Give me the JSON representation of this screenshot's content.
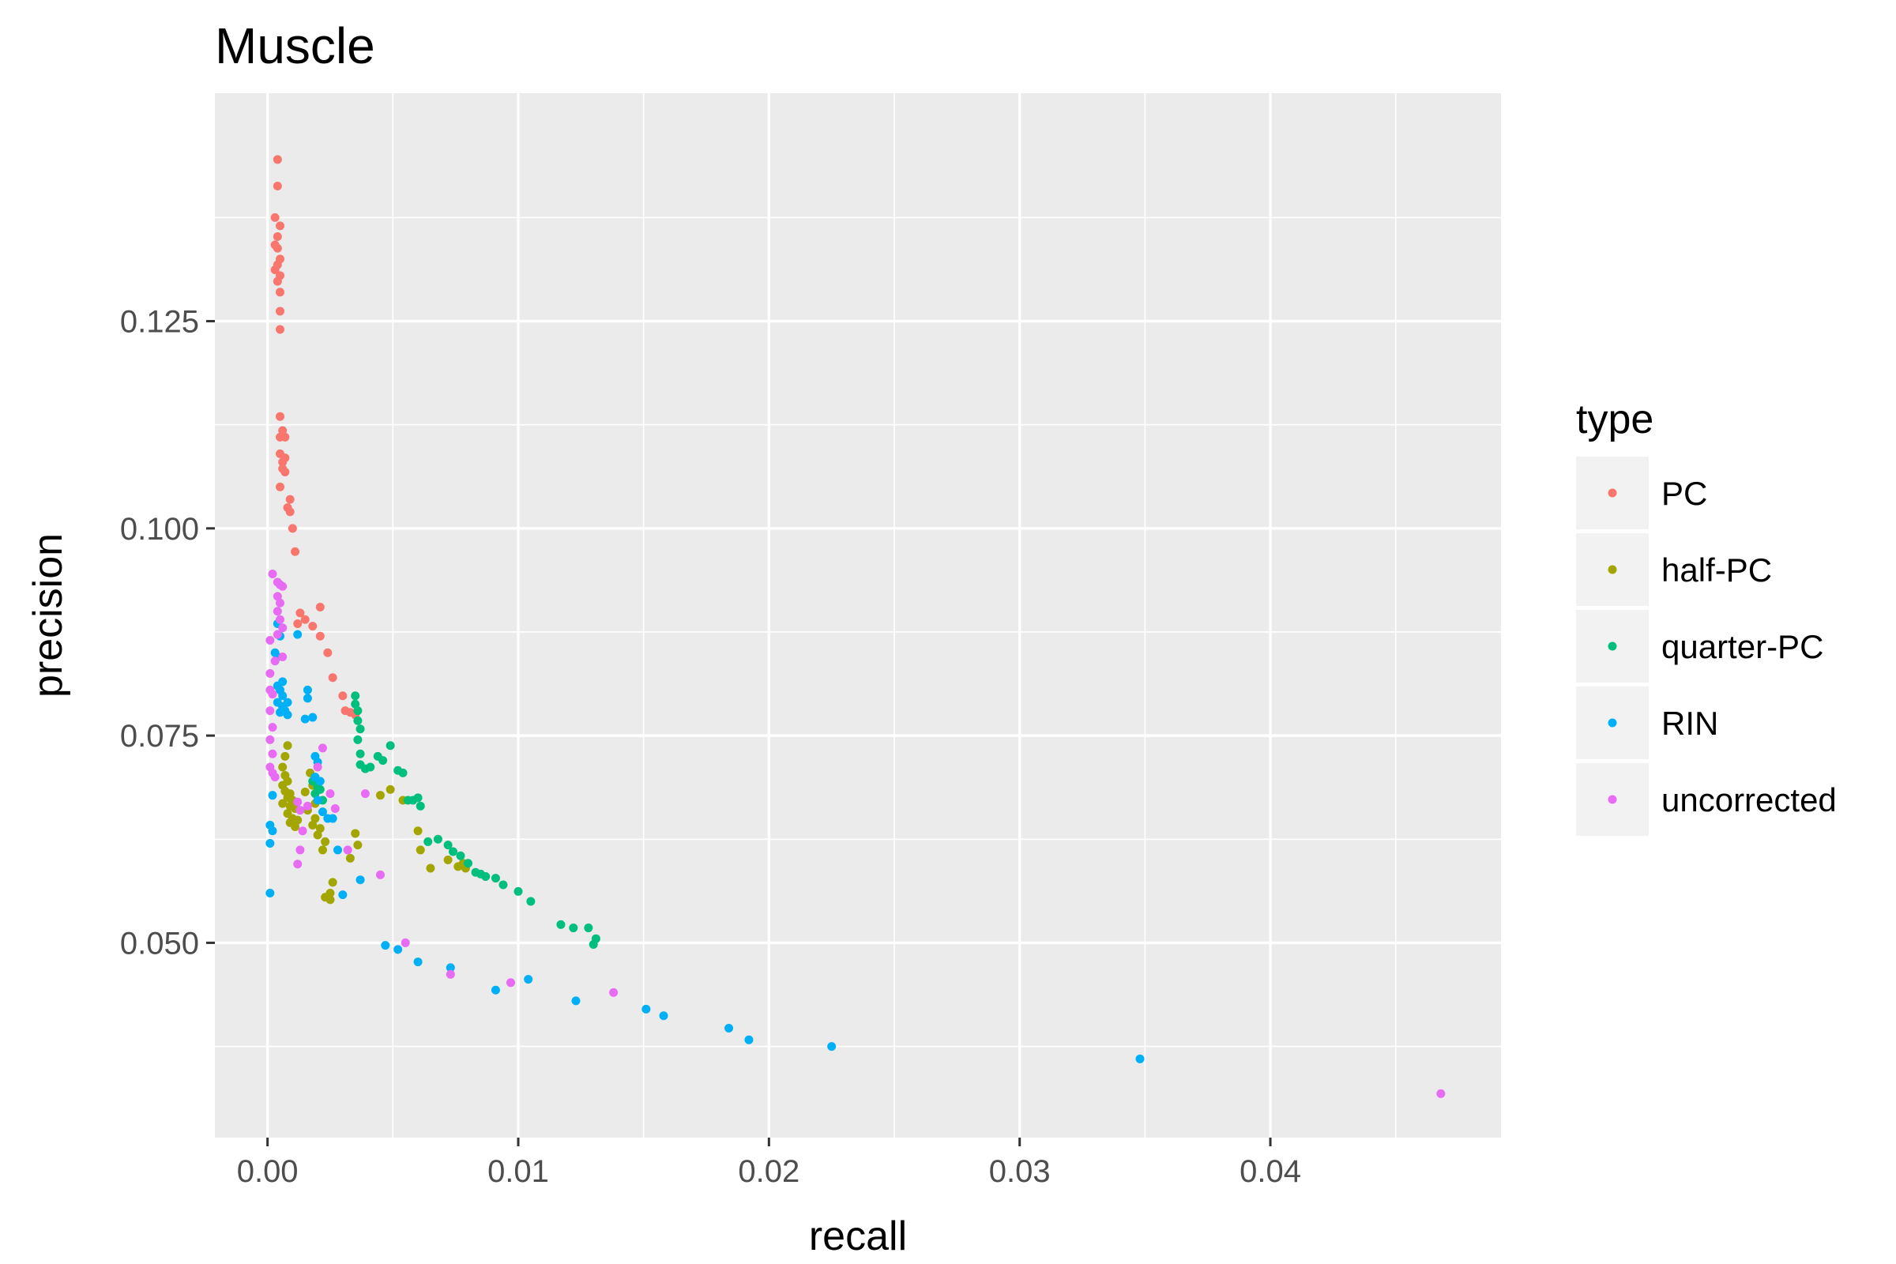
{
  "chart_data": {
    "type": "scatter",
    "title": "Muscle",
    "xlabel": "recall",
    "ylabel": "precision",
    "xlim": [
      -0.0021,
      0.0492
    ],
    "ylim": [
      0.0265,
      0.1525
    ],
    "x_ticks": [
      {
        "value": 0.0,
        "label": "0.00"
      },
      {
        "value": 0.01,
        "label": "0.01"
      },
      {
        "value": 0.02,
        "label": "0.02"
      },
      {
        "value": 0.03,
        "label": "0.03"
      },
      {
        "value": 0.04,
        "label": "0.04"
      }
    ],
    "y_ticks": [
      {
        "value": 0.05,
        "label": "0.050"
      },
      {
        "value": 0.075,
        "label": "0.075"
      },
      {
        "value": 0.1,
        "label": "0.100"
      },
      {
        "value": 0.125,
        "label": "0.125"
      }
    ],
    "grid": true,
    "legend_title": "type",
    "legend_position": "right",
    "series": [
      {
        "name": "PC",
        "color": "#F8766D",
        "points": [
          [
            0.0004,
            0.1445
          ],
          [
            0.0004,
            0.1413
          ],
          [
            0.0003,
            0.1375
          ],
          [
            0.0005,
            0.1365
          ],
          [
            0.0004,
            0.1352
          ],
          [
            0.0003,
            0.1342
          ],
          [
            0.0004,
            0.1338
          ],
          [
            0.0005,
            0.1325
          ],
          [
            0.0004,
            0.1318
          ],
          [
            0.0003,
            0.1312
          ],
          [
            0.0005,
            0.1305
          ],
          [
            0.0004,
            0.1298
          ],
          [
            0.0005,
            0.1285
          ],
          [
            0.0005,
            0.1262
          ],
          [
            0.0005,
            0.124
          ],
          [
            0.0005,
            0.1135
          ],
          [
            0.0006,
            0.1118
          ],
          [
            0.0005,
            0.111
          ],
          [
            0.0007,
            0.111
          ],
          [
            0.0005,
            0.109
          ],
          [
            0.0007,
            0.1085
          ],
          [
            0.0006,
            0.108
          ],
          [
            0.0006,
            0.1072
          ],
          [
            0.0007,
            0.1068
          ],
          [
            0.0005,
            0.105
          ],
          [
            0.0009,
            0.1035
          ],
          [
            0.0008,
            0.1025
          ],
          [
            0.0009,
            0.102
          ],
          [
            0.001,
            0.1
          ],
          [
            0.0011,
            0.0972
          ],
          [
            0.0013,
            0.0898
          ],
          [
            0.0015,
            0.089
          ],
          [
            0.0012,
            0.0885
          ],
          [
            0.0021,
            0.0905
          ],
          [
            0.0018,
            0.0882
          ],
          [
            0.0021,
            0.087
          ],
          [
            0.0024,
            0.085
          ],
          [
            0.0026,
            0.082
          ],
          [
            0.003,
            0.0798
          ],
          [
            0.0031,
            0.078
          ],
          [
            0.0033,
            0.0778
          ],
          [
            0.0035,
            0.0775
          ]
        ]
      },
      {
        "name": "half-PC",
        "color": "#A3A500",
        "points": [
          [
            0.0008,
            0.0738
          ],
          [
            0.0007,
            0.0725
          ],
          [
            0.0006,
            0.0712
          ],
          [
            0.0007,
            0.0702
          ],
          [
            0.0008,
            0.0695
          ],
          [
            0.0006,
            0.069
          ],
          [
            0.0007,
            0.0683
          ],
          [
            0.0009,
            0.068
          ],
          [
            0.0008,
            0.0675
          ],
          [
            0.001,
            0.0672
          ],
          [
            0.0006,
            0.0668
          ],
          [
            0.0009,
            0.0665
          ],
          [
            0.0011,
            0.0662
          ],
          [
            0.0008,
            0.0656
          ],
          [
            0.001,
            0.065
          ],
          [
            0.0012,
            0.0648
          ],
          [
            0.0009,
            0.0645
          ],
          [
            0.0011,
            0.064
          ],
          [
            0.0017,
            0.0705
          ],
          [
            0.0018,
            0.069
          ],
          [
            0.0015,
            0.0682
          ],
          [
            0.0019,
            0.0668
          ],
          [
            0.0016,
            0.066
          ],
          [
            0.0019,
            0.065
          ],
          [
            0.0018,
            0.0642
          ],
          [
            0.0021,
            0.0638
          ],
          [
            0.002,
            0.063
          ],
          [
            0.0023,
            0.0622
          ],
          [
            0.0022,
            0.0612
          ],
          [
            0.0035,
            0.0632
          ],
          [
            0.0036,
            0.0618
          ],
          [
            0.0033,
            0.0602
          ],
          [
            0.0026,
            0.0573
          ],
          [
            0.0025,
            0.056
          ],
          [
            0.0023,
            0.0555
          ],
          [
            0.0025,
            0.0552
          ],
          [
            0.0045,
            0.0678
          ],
          [
            0.0049,
            0.0685
          ],
          [
            0.0054,
            0.0672
          ],
          [
            0.006,
            0.0635
          ],
          [
            0.0061,
            0.0612
          ],
          [
            0.0065,
            0.059
          ],
          [
            0.0072,
            0.06
          ],
          [
            0.0076,
            0.0592
          ],
          [
            0.0078,
            0.0596
          ],
          [
            0.0079,
            0.059
          ]
        ]
      },
      {
        "name": "quarter-PC",
        "color": "#00BF7D",
        "points": [
          [
            0.0018,
            0.0695
          ],
          [
            0.002,
            0.0688
          ],
          [
            0.0019,
            0.068
          ],
          [
            0.0022,
            0.0672
          ],
          [
            0.0021,
            0.0685
          ],
          [
            0.0035,
            0.0798
          ],
          [
            0.0035,
            0.0788
          ],
          [
            0.0036,
            0.078
          ],
          [
            0.0036,
            0.0768
          ],
          [
            0.0037,
            0.0758
          ],
          [
            0.0036,
            0.0745
          ],
          [
            0.0037,
            0.0728
          ],
          [
            0.0037,
            0.0715
          ],
          [
            0.0039,
            0.071
          ],
          [
            0.0041,
            0.0712
          ],
          [
            0.0044,
            0.0725
          ],
          [
            0.0046,
            0.072
          ],
          [
            0.0049,
            0.0738
          ],
          [
            0.0052,
            0.0708
          ],
          [
            0.0054,
            0.0705
          ],
          [
            0.0056,
            0.0672
          ],
          [
            0.0058,
            0.0672
          ],
          [
            0.006,
            0.0675
          ],
          [
            0.0061,
            0.0665
          ],
          [
            0.0064,
            0.0622
          ],
          [
            0.0068,
            0.0625
          ],
          [
            0.0072,
            0.0618
          ],
          [
            0.0074,
            0.061
          ],
          [
            0.0077,
            0.0605
          ],
          [
            0.008,
            0.0596
          ],
          [
            0.0083,
            0.0585
          ],
          [
            0.0085,
            0.0583
          ],
          [
            0.0087,
            0.058
          ],
          [
            0.0091,
            0.0578
          ],
          [
            0.0094,
            0.057
          ],
          [
            0.01,
            0.0562
          ],
          [
            0.0105,
            0.055
          ],
          [
            0.0117,
            0.0522
          ],
          [
            0.0122,
            0.0518
          ],
          [
            0.0128,
            0.0518
          ],
          [
            0.013,
            0.0498
          ],
          [
            0.0131,
            0.0505
          ]
        ]
      },
      {
        "name": "RIN",
        "color": "#00B0F6",
        "points": [
          [
            0.0004,
            0.0885
          ],
          [
            0.0005,
            0.087
          ],
          [
            0.0003,
            0.085
          ],
          [
            0.0004,
            0.0845
          ],
          [
            0.0006,
            0.0815
          ],
          [
            0.0004,
            0.081
          ],
          [
            0.0005,
            0.0805
          ],
          [
            0.0006,
            0.0798
          ],
          [
            0.0004,
            0.079
          ],
          [
            0.0006,
            0.0785
          ],
          [
            0.0007,
            0.078
          ],
          [
            0.0008,
            0.079
          ],
          [
            0.0005,
            0.0778
          ],
          [
            0.0008,
            0.0775
          ],
          [
            0.0012,
            0.0872
          ],
          [
            0.0016,
            0.0805
          ],
          [
            0.0016,
            0.0795
          ],
          [
            0.0015,
            0.077
          ],
          [
            0.0018,
            0.0772
          ],
          [
            0.0019,
            0.0725
          ],
          [
            0.002,
            0.0718
          ],
          [
            0.0002,
            0.0678
          ],
          [
            0.0001,
            0.0642
          ],
          [
            0.0002,
            0.0635
          ],
          [
            0.0001,
            0.062
          ],
          [
            0.0001,
            0.056
          ],
          [
            0.0019,
            0.07
          ],
          [
            0.0021,
            0.0695
          ],
          [
            0.002,
            0.0672
          ],
          [
            0.0022,
            0.0658
          ],
          [
            0.0024,
            0.065
          ],
          [
            0.0026,
            0.065
          ],
          [
            0.0028,
            0.0612
          ],
          [
            0.003,
            0.0558
          ],
          [
            0.0037,
            0.0576
          ],
          [
            0.0047,
            0.0497
          ],
          [
            0.0052,
            0.0492
          ],
          [
            0.006,
            0.0477
          ],
          [
            0.0073,
            0.047
          ],
          [
            0.0091,
            0.0443
          ],
          [
            0.0104,
            0.0456
          ],
          [
            0.0123,
            0.043
          ],
          [
            0.0151,
            0.042
          ],
          [
            0.0158,
            0.0412
          ],
          [
            0.0184,
            0.0397
          ],
          [
            0.0192,
            0.0383
          ],
          [
            0.0225,
            0.0375
          ],
          [
            0.0348,
            0.036
          ]
        ]
      },
      {
        "name": "uncorrected",
        "color": "#E76BF3",
        "points": [
          [
            0.0002,
            0.0945
          ],
          [
            0.0004,
            0.0935
          ],
          [
            0.0005,
            0.0932
          ],
          [
            0.0006,
            0.093
          ],
          [
            0.0004,
            0.0918
          ],
          [
            0.0005,
            0.091
          ],
          [
            0.0004,
            0.09
          ],
          [
            0.0005,
            0.089
          ],
          [
            0.0006,
            0.088
          ],
          [
            0.0004,
            0.0872
          ],
          [
            0.0001,
            0.0865
          ],
          [
            0.0006,
            0.0845
          ],
          [
            0.0003,
            0.084
          ],
          [
            0.0001,
            0.0825
          ],
          [
            0.0001,
            0.0805
          ],
          [
            0.0002,
            0.08
          ],
          [
            0.0001,
            0.078
          ],
          [
            0.0002,
            0.076
          ],
          [
            0.0001,
            0.0745
          ],
          [
            0.0002,
            0.0728
          ],
          [
            0.0001,
            0.0712
          ],
          [
            0.0002,
            0.0705
          ],
          [
            0.0003,
            0.07
          ],
          [
            0.0012,
            0.067
          ],
          [
            0.0013,
            0.066
          ],
          [
            0.0016,
            0.0665
          ],
          [
            0.0014,
            0.0635
          ],
          [
            0.0013,
            0.0612
          ],
          [
            0.0012,
            0.0595
          ],
          [
            0.002,
            0.0712
          ],
          [
            0.0022,
            0.0735
          ],
          [
            0.0025,
            0.068
          ],
          [
            0.0027,
            0.0662
          ],
          [
            0.0032,
            0.0612
          ],
          [
            0.0039,
            0.068
          ],
          [
            0.0045,
            0.0582
          ],
          [
            0.0055,
            0.05
          ],
          [
            0.0073,
            0.0462
          ],
          [
            0.0097,
            0.0452
          ],
          [
            0.0138,
            0.044
          ],
          [
            0.0468,
            0.0318
          ]
        ]
      }
    ]
  }
}
